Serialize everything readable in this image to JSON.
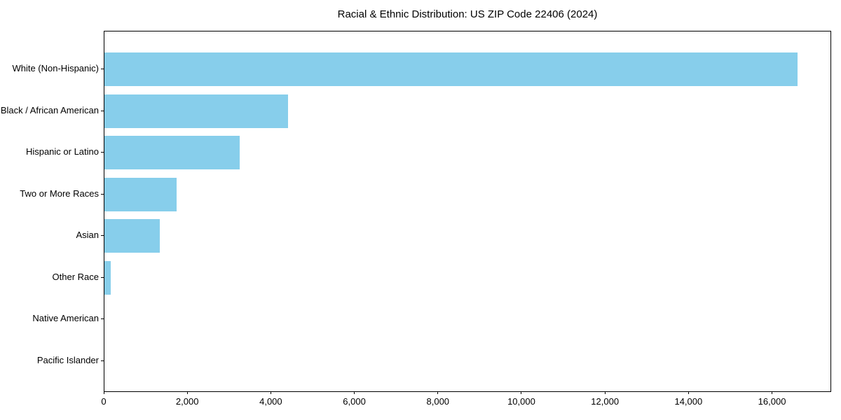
{
  "chart_data": {
    "type": "bar",
    "orientation": "horizontal",
    "title": "Racial & Ethnic Distribution: US ZIP Code 22406 (2024)",
    "xlabel": "",
    "ylabel": "",
    "categories": [
      "White (Non-Hispanic)",
      "Black / African American",
      "Hispanic or Latino",
      "Two or More Races",
      "Asian",
      "Other Race",
      "Native American",
      "Pacific Islander"
    ],
    "values": [
      16600,
      4400,
      3230,
      1730,
      1330,
      150,
      0,
      0
    ],
    "xlim": [
      0,
      17400
    ],
    "xticks": [
      0,
      2000,
      4000,
      6000,
      8000,
      10000,
      12000,
      14000,
      16000
    ],
    "xtick_labels": [
      "0",
      "2,000",
      "4,000",
      "6,000",
      "8,000",
      "10,000",
      "12,000",
      "14,000",
      "16,000"
    ],
    "bar_color": "#87CEEB",
    "axis_color": "#000000",
    "text_color": "#000000",
    "background": "#FFFFFF",
    "grid": false,
    "legend": null
  }
}
